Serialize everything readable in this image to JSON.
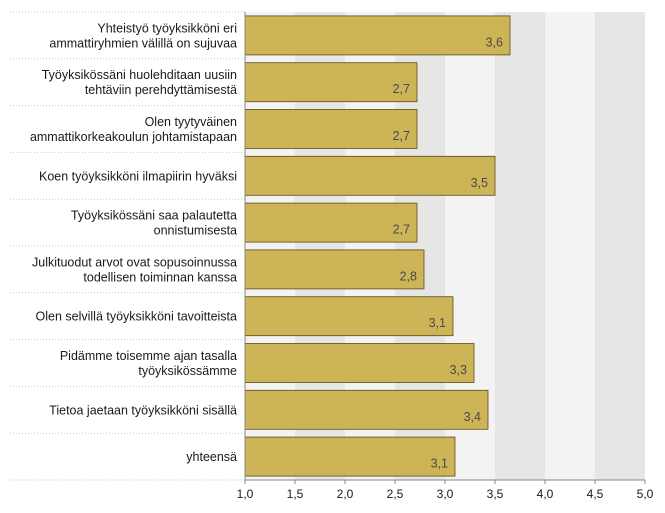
{
  "chart_data": {
    "type": "bar",
    "orientation": "horizontal",
    "categories": [
      [
        "Yhteistyö työyksikköni eri",
        "ammattiryhmien välillä on sujuvaa"
      ],
      [
        "Työyksikössäni huolehditaan uusiin",
        "tehtäviin perehdyttämisestä"
      ],
      [
        "Olen tyytyväinen",
        "ammattikorkeakoulun johtamistapaan"
      ],
      [
        "Koen työyksikköni ilmapiirin hyväksi"
      ],
      [
        "Työyksikössäni saa palautetta",
        "onnistumisesta"
      ],
      [
        "Julkituodut arvot ovat sopusoinnussa",
        "todellisen toiminnan kanssa"
      ],
      [
        "Olen selvillä työyksikköni tavoitteista"
      ],
      [
        "Pidämme toisemme ajan tasalla",
        "työyksikössämme"
      ],
      [
        "Tietoa jaetaan työyksikköni sisällä"
      ],
      [
        "yhteensä"
      ]
    ],
    "values": [
      3.65,
      2.72,
      2.72,
      3.5,
      2.72,
      2.79,
      3.08,
      3.29,
      3.43,
      3.1
    ],
    "value_labels": [
      "3,6",
      "2,7",
      "2,7",
      "3,5",
      "2,7",
      "2,8",
      "3,1",
      "3,3",
      "3,4",
      "3,1"
    ],
    "xlim": [
      1.0,
      5.0
    ],
    "xticks": [
      "1,0",
      "1,5",
      "2,0",
      "2,5",
      "3,0",
      "3,5",
      "4,0",
      "4,5",
      "5,0"
    ],
    "grid": "alternating vertical bands",
    "colors": {
      "bar_fill": "#CDB457",
      "bar_stroke": "#5a4a1a",
      "band_light": "#F3F3F3",
      "band_dark": "#E6E6E6",
      "axis": "#888888"
    }
  }
}
